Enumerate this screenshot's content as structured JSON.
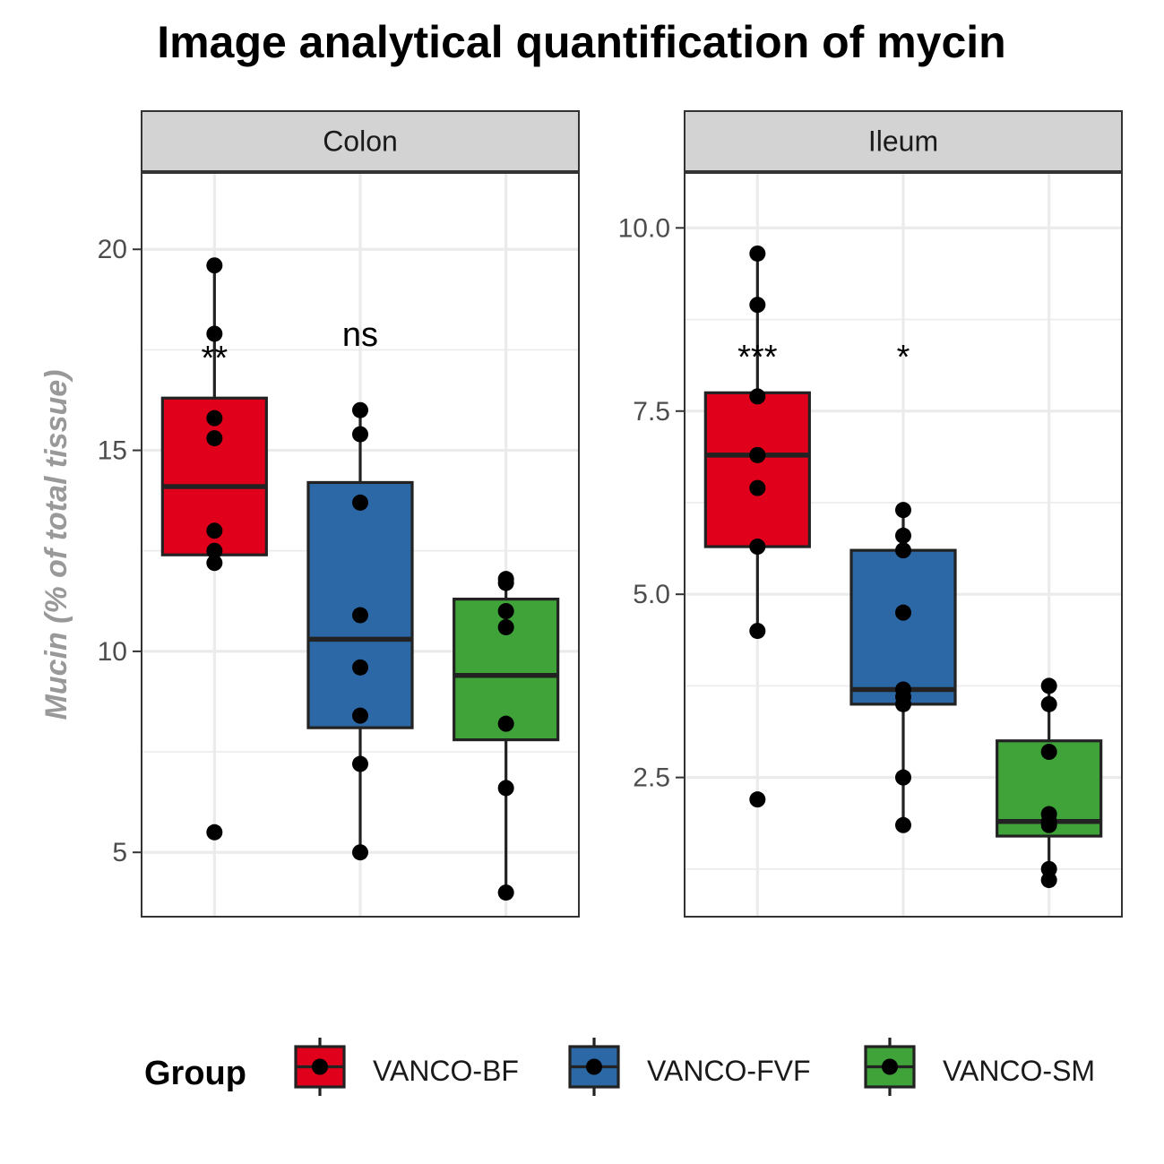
{
  "chart_data": {
    "type": "box",
    "title": "Image analytical quantification of mycin",
    "ylabel": "Mucin (% of total tissue)",
    "xlabel": "",
    "legend": {
      "title": "Group",
      "position": "bottom",
      "entries": [
        "VANCO-BF",
        "VANCO-FVF",
        "VANCO-SM"
      ]
    },
    "colors": {
      "VANCO-BF": "#e0001b",
      "VANCO-FVF": "#2c68a6",
      "VANCO-SM": "#3fa33a",
      "box_outline": "#222222",
      "strip_fill": "#d3d3d3",
      "grid": "#ebebeb"
    },
    "grid": true,
    "panels": [
      {
        "name": "Colon",
        "ylim": [
          3.4,
          21.9
        ],
        "yticks": [
          5,
          10,
          15,
          20
        ],
        "ytick_labels": [
          "5",
          "10",
          "15",
          "20"
        ],
        "annotations": [
          "**",
          "ns",
          ""
        ],
        "annotation_y": 17.6,
        "groups": [
          {
            "name": "VANCO-BF",
            "whisker_low": 12.2,
            "q1": 12.4,
            "median": 14.1,
            "q3": 16.3,
            "whisker_high": 19.6,
            "points": [
              19.6,
              17.9,
              15.8,
              15.3,
              13.0,
              12.5,
              12.2,
              5.5
            ]
          },
          {
            "name": "VANCO-FVF",
            "whisker_low": 5.0,
            "q1": 8.1,
            "median": 10.3,
            "q3": 14.2,
            "whisker_high": 16.0,
            "points": [
              16.0,
              15.4,
              13.7,
              10.9,
              9.6,
              8.4,
              7.2,
              5.0
            ]
          },
          {
            "name": "VANCO-SM",
            "whisker_low": 4.0,
            "q1": 7.8,
            "median": 9.4,
            "q3": 11.3,
            "whisker_high": 11.8,
            "points": [
              11.8,
              11.7,
              11.0,
              10.6,
              8.2,
              6.6,
              4.0
            ]
          }
        ]
      },
      {
        "name": "Ileum",
        "ylim": [
          0.6,
          10.75
        ],
        "yticks": [
          2.5,
          5.0,
          7.5,
          10.0
        ],
        "ytick_labels": [
          "2.5",
          "5.0",
          "7.5",
          "10.0"
        ],
        "annotations": [
          "***",
          "*",
          ""
        ],
        "annotation_y": 8.4,
        "groups": [
          {
            "name": "VANCO-BF",
            "whisker_low": 4.5,
            "q1": 5.65,
            "median": 6.9,
            "q3": 7.75,
            "whisker_high": 9.65,
            "points": [
              9.65,
              8.95,
              7.7,
              6.9,
              6.9,
              6.45,
              5.65,
              4.5,
              2.2
            ]
          },
          {
            "name": "VANCO-FVF",
            "whisker_low": 1.85,
            "q1": 3.5,
            "median": 3.7,
            "q3": 5.6,
            "whisker_high": 6.15,
            "points": [
              6.15,
              5.8,
              5.6,
              4.75,
              3.7,
              3.6,
              3.5,
              2.5,
              1.85
            ]
          },
          {
            "name": "VANCO-SM",
            "whisker_low": 1.1,
            "q1": 1.7,
            "median": 1.9,
            "q3": 3.0,
            "whisker_high": 3.75,
            "points": [
              3.75,
              3.5,
              2.85,
              2.0,
              1.9,
              1.85,
              1.25,
              1.1
            ]
          }
        ]
      }
    ]
  }
}
